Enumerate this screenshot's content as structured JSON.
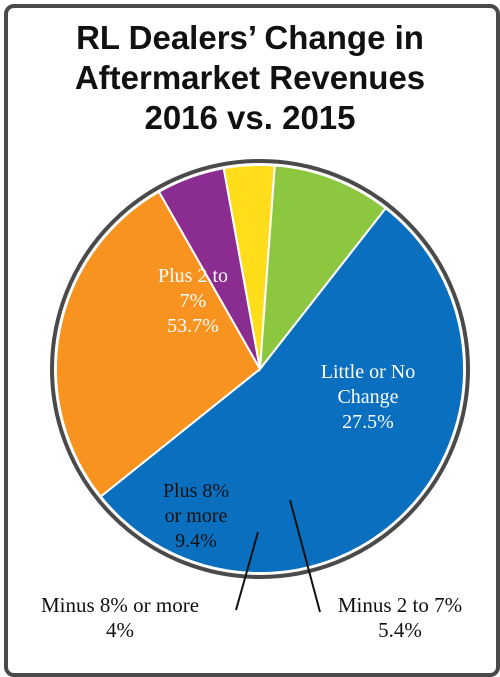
{
  "chart_data": {
    "type": "pie",
    "title": "RL Dealers’ Change in Aftermarket Revenues 2016 vs. 2015",
    "title_lines": [
      "RL Dealers’ Change in",
      "Aftermarket Revenues",
      "2016 vs. 2015"
    ],
    "slices": [
      {
        "label": "Plus 2 to 7%",
        "label_lines": [
          "Plus 2 to",
          "7%"
        ],
        "value_label": "53.7%",
        "value": 53.7,
        "color": "#0a6fbf"
      },
      {
        "label": "Little or No Change",
        "label_lines": [
          "Little or No",
          "Change"
        ],
        "value_label": "27.5%",
        "value": 27.5,
        "color": "#f7931e"
      },
      {
        "label": "Minus 2 to 7%",
        "label_lines": [
          "Minus 2 to 7%"
        ],
        "value_label": "5.4%",
        "value": 5.4,
        "color": "#8b2c90"
      },
      {
        "label": "Minus 8% or more",
        "label_lines": [
          "Minus 8% or more"
        ],
        "value_label": "4%",
        "value": 4,
        "color": "#ffdd1a"
      },
      {
        "label": "Plus 8% or more",
        "label_lines": [
          "Plus 8%",
          "or more"
        ],
        "value_label": "9.4%",
        "value": 9.4,
        "color": "#8dc63f"
      }
    ],
    "legend": "none"
  }
}
